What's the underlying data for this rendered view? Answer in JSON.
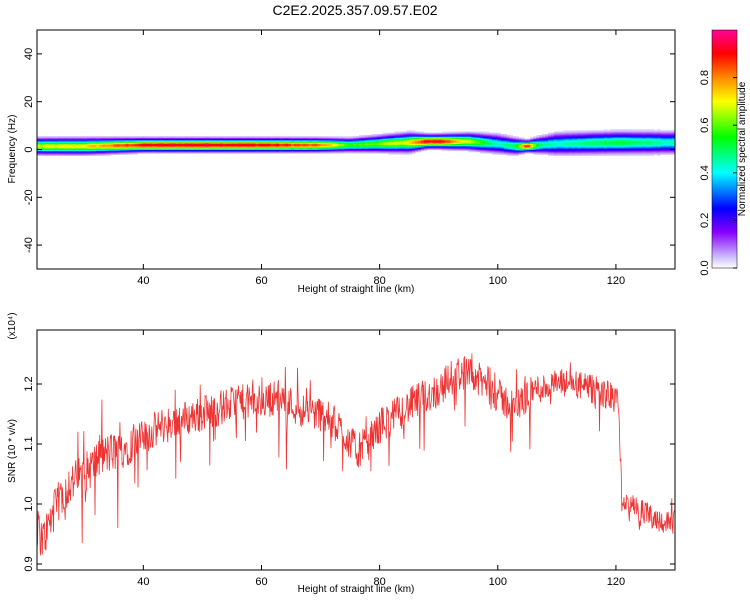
{
  "title": "C2E2.2025.357.09.57.E02",
  "chart_data": [
    {
      "type": "heatmap",
      "xlabel": "Height of straight line (km)",
      "ylabel": "Frequency (Hz)",
      "xlim": [
        22,
        130
      ],
      "ylim": [
        -50,
        50
      ],
      "xticks": [
        40,
        60,
        80,
        100,
        120
      ],
      "yticks": [
        40,
        20,
        0,
        -20,
        -40
      ],
      "colorbar": {
        "label": "Normalized spectral amplitude",
        "range": [
          0,
          1
        ],
        "ticks": [
          "0.0",
          "0.2",
          "0.4",
          "0.6",
          "0.8"
        ],
        "colors": [
          "#ffffff",
          "#c9b6ff",
          "#8800ff",
          "#0000ff",
          "#00ffff",
          "#00ff00",
          "#ffff00",
          "#ff8800",
          "#ff0000",
          "#ff0099"
        ]
      },
      "ridge": {
        "x": [
          22,
          30,
          40,
          50,
          60,
          70,
          75,
          80,
          85,
          88,
          90,
          95,
          100,
          103,
          105,
          107,
          110,
          120,
          130
        ],
        "center_hz": [
          1.5,
          1.5,
          2,
          2,
          2,
          2,
          2,
          2.5,
          3,
          3.5,
          3.5,
          3.5,
          2.5,
          1.5,
          1.5,
          2,
          2.5,
          3,
          3
        ],
        "peak_amplitude": [
          0.7,
          0.75,
          0.95,
          0.98,
          0.95,
          0.85,
          0.6,
          0.65,
          0.75,
          0.95,
          0.98,
          0.7,
          0.45,
          0.55,
          0.95,
          0.5,
          0.45,
          0.55,
          0.45
        ],
        "half_width_hz": [
          3,
          3,
          2.5,
          2.5,
          2.5,
          2.5,
          2.5,
          3,
          3.5,
          2.5,
          2.5,
          3,
          3.5,
          3,
          2,
          3,
          4,
          4,
          4
        ]
      }
    },
    {
      "type": "line",
      "xlabel": "Height of straight line (km)",
      "ylabel": "SNR (10 * v/v)",
      "yscale_label": "(x10⁴)",
      "xlim": [
        22,
        130
      ],
      "ylim": [
        0.89,
        1.29
      ],
      "xticks": [
        40,
        60,
        80,
        100,
        120
      ],
      "yticks": [
        "0.9",
        "1.0",
        "1.1",
        "1.2"
      ],
      "series": [
        {
          "color": "#ee3333",
          "x": [
            22,
            23,
            25,
            27,
            30,
            33,
            36,
            40,
            43,
            46,
            50,
            53,
            56,
            60,
            63,
            66,
            70,
            73,
            76,
            78,
            80,
            83,
            86,
            90,
            92,
            94,
            96,
            98,
            100,
            103,
            106,
            110,
            113,
            116,
            119,
            120.5,
            121,
            122,
            124,
            126,
            128,
            130
          ],
          "y": [
            0.96,
            0.94,
            0.99,
            1.03,
            1.05,
            1.08,
            1.09,
            1.11,
            1.13,
            1.14,
            1.15,
            1.16,
            1.17,
            1.17,
            1.18,
            1.16,
            1.15,
            1.13,
            1.09,
            1.1,
            1.13,
            1.15,
            1.17,
            1.19,
            1.21,
            1.22,
            1.21,
            1.2,
            1.18,
            1.16,
            1.19,
            1.2,
            1.2,
            1.19,
            1.18,
            1.17,
            1.0,
            1.0,
            0.99,
            0.98,
            0.97,
            0.97
          ],
          "noise_amplitude": [
            0.035,
            0.035,
            0.035,
            0.035,
            0.035,
            0.035,
            0.035,
            0.03,
            0.03,
            0.03,
            0.03,
            0.03,
            0.03,
            0.03,
            0.03,
            0.03,
            0.03,
            0.03,
            0.03,
            0.03,
            0.03,
            0.03,
            0.03,
            0.03,
            0.03,
            0.03,
            0.03,
            0.03,
            0.03,
            0.03,
            0.025,
            0.025,
            0.025,
            0.025,
            0.025,
            0.025,
            0.02,
            0.02,
            0.02,
            0.02,
            0.02,
            0.02
          ]
        }
      ]
    }
  ]
}
